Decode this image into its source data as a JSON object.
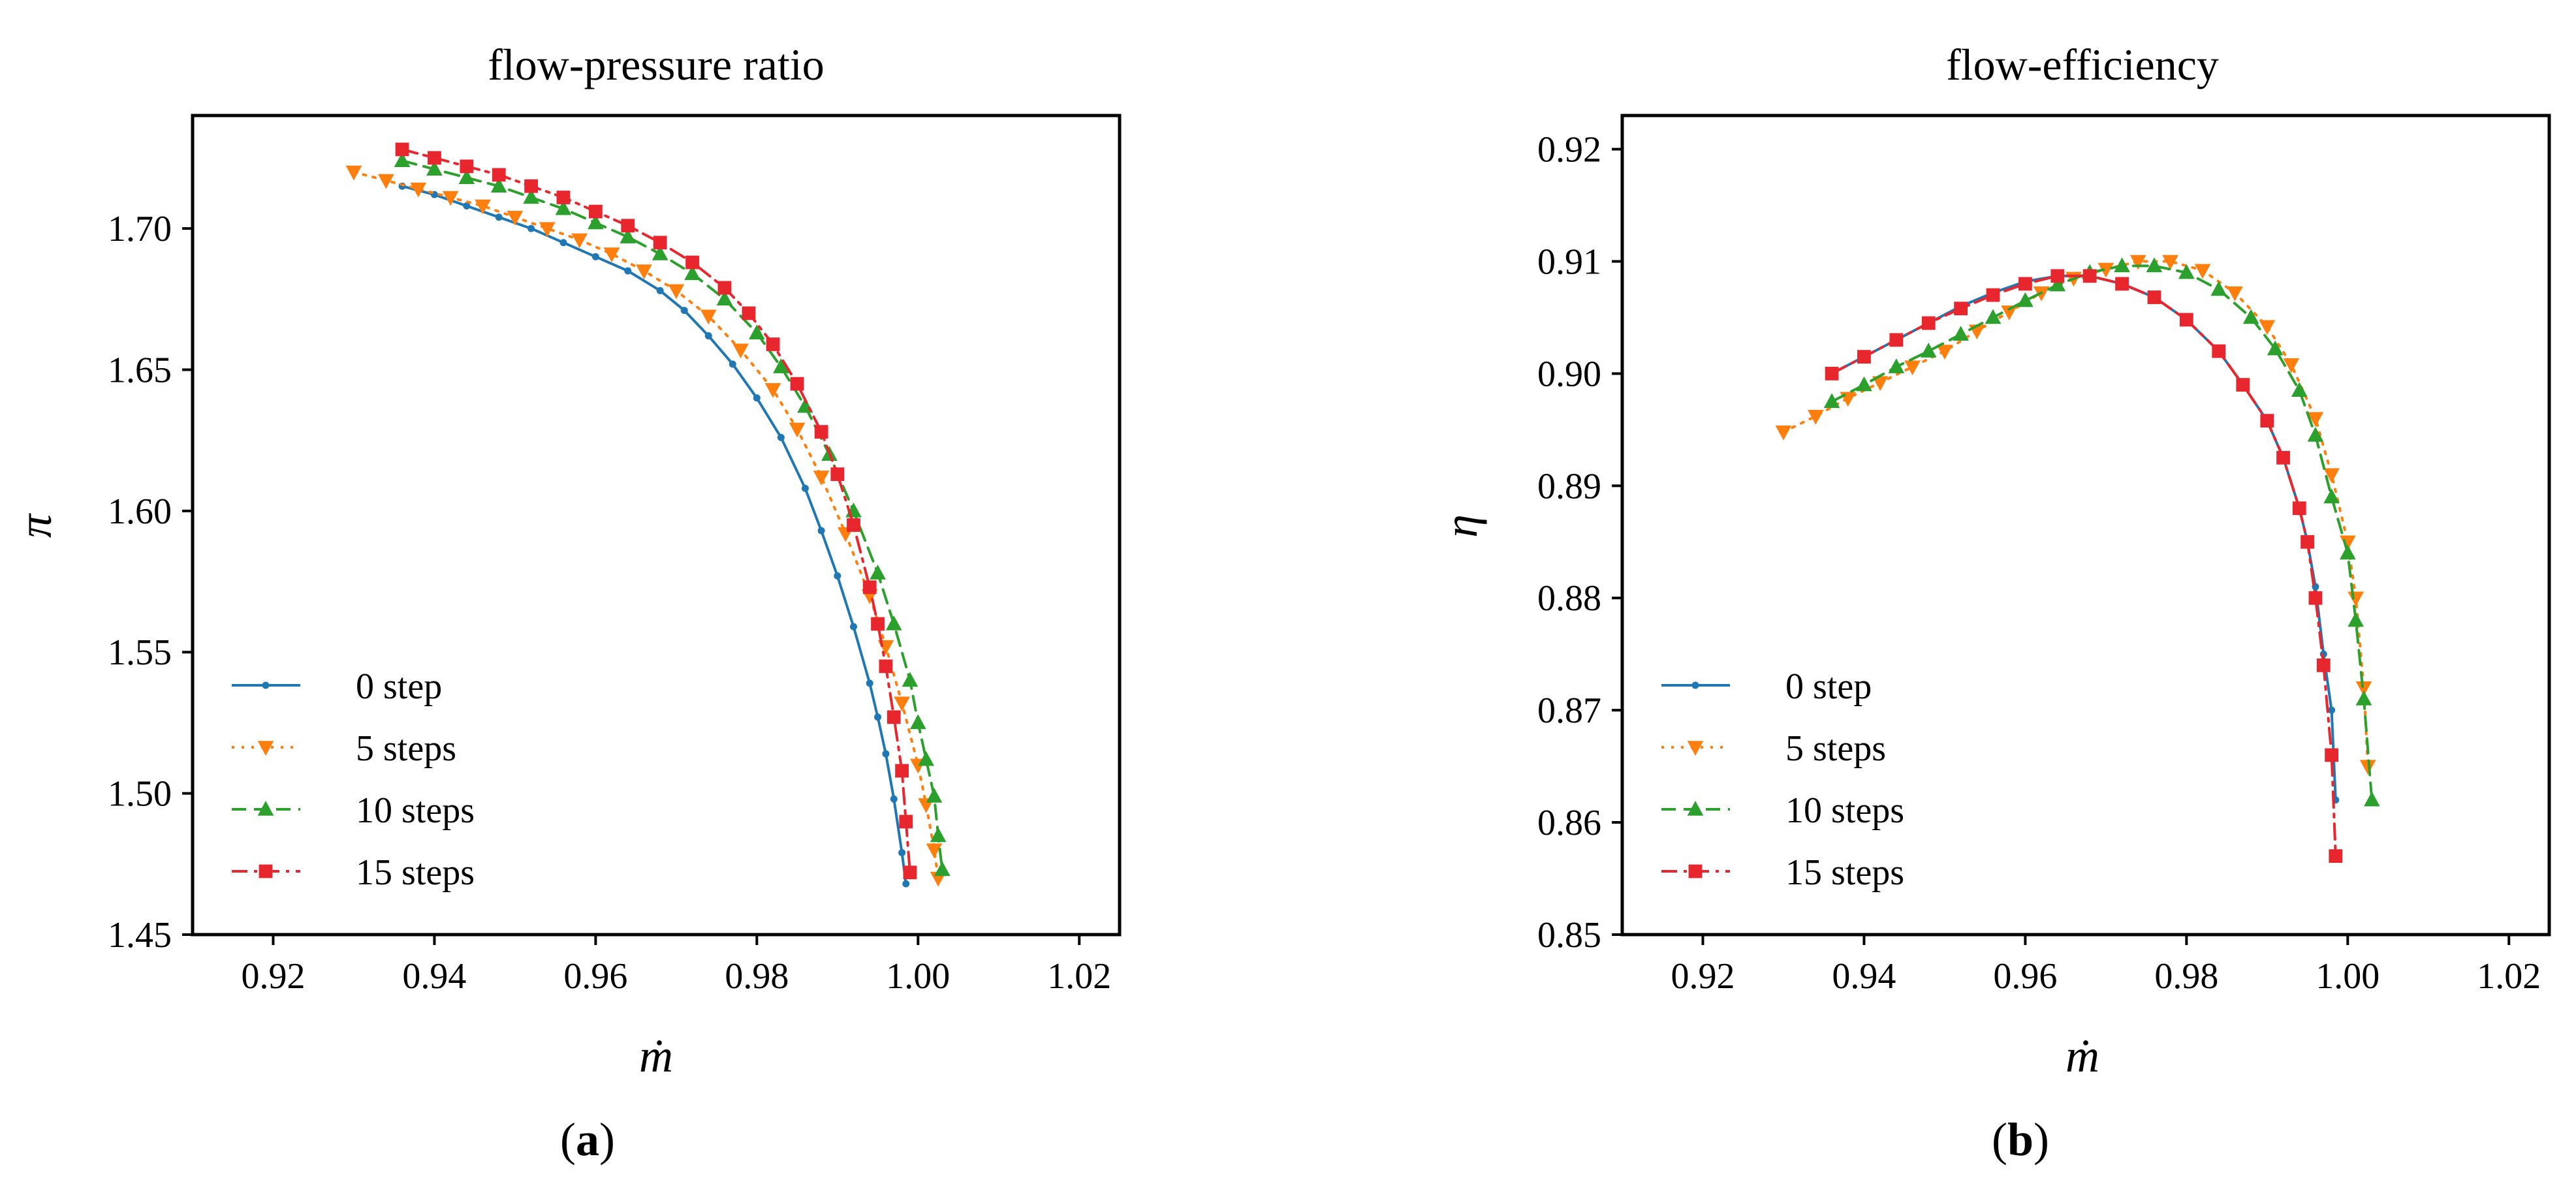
{
  "figure": {
    "panel_labels": [
      {
        "open": "(",
        "letter": "a",
        "close": ")"
      },
      {
        "open": "(",
        "letter": "b",
        "close": ")"
      }
    ]
  },
  "chart_data": [
    {
      "type": "line",
      "title": "flow-pressure ratio",
      "xlabel": "ṁ",
      "ylabel": "π",
      "xlim": [
        0.91,
        1.025
      ],
      "ylim": [
        1.45,
        1.74
      ],
      "xticks": [
        0.92,
        0.94,
        0.96,
        0.98,
        1.0,
        1.02
      ],
      "xtick_labels": [
        "0.92",
        "0.94",
        "0.96",
        "0.98",
        "1.00",
        "1.02"
      ],
      "yticks": [
        1.45,
        1.5,
        1.55,
        1.6,
        1.65,
        1.7
      ],
      "ytick_labels": [
        "1.45",
        "1.50",
        "1.55",
        "1.60",
        "1.65",
        "1.70"
      ],
      "grid": false,
      "legend_position": "lower-left",
      "series": [
        {
          "name": "0 step",
          "color": "#1f77b4",
          "linestyle": "solid",
          "marker": "dot",
          "x": [
            0.936,
            0.94,
            0.944,
            0.948,
            0.952,
            0.956,
            0.96,
            0.964,
            0.968,
            0.971,
            0.974,
            0.977,
            0.98,
            0.983,
            0.986,
            0.988,
            0.99,
            0.992,
            0.994,
            0.995,
            0.996,
            0.997,
            0.998,
            0.9985
          ],
          "y": [
            1.715,
            1.712,
            1.708,
            1.704,
            1.7,
            1.695,
            1.69,
            1.685,
            1.678,
            1.671,
            1.662,
            1.652,
            1.64,
            1.626,
            1.608,
            1.593,
            1.577,
            1.559,
            1.539,
            1.527,
            1.514,
            1.498,
            1.479,
            1.468
          ]
        },
        {
          "name": "5 steps",
          "color": "#ff7f0e",
          "linestyle": "dotted",
          "marker": "triangle-down",
          "x": [
            0.93,
            0.934,
            0.938,
            0.942,
            0.946,
            0.95,
            0.954,
            0.958,
            0.962,
            0.966,
            0.97,
            0.974,
            0.978,
            0.982,
            0.985,
            0.988,
            0.991,
            0.994,
            0.996,
            0.998,
            1.0,
            1.001,
            1.002,
            1.0025
          ],
          "y": [
            1.72,
            1.717,
            1.714,
            1.711,
            1.708,
            1.704,
            1.7,
            1.696,
            1.691,
            1.685,
            1.678,
            1.669,
            1.657,
            1.643,
            1.629,
            1.612,
            1.592,
            1.57,
            1.552,
            1.532,
            1.51,
            1.496,
            1.48,
            1.47
          ]
        },
        {
          "name": "10 steps",
          "color": "#2ca02c",
          "linestyle": "dashed",
          "marker": "triangle-up",
          "x": [
            0.936,
            0.94,
            0.944,
            0.948,
            0.952,
            0.956,
            0.96,
            0.964,
            0.968,
            0.972,
            0.976,
            0.98,
            0.983,
            0.986,
            0.989,
            0.992,
            0.995,
            0.997,
            0.999,
            1.0,
            1.001,
            1.002,
            1.0025,
            1.003
          ],
          "y": [
            1.724,
            1.721,
            1.718,
            1.715,
            1.711,
            1.707,
            1.702,
            1.697,
            1.691,
            1.684,
            1.675,
            1.663,
            1.651,
            1.637,
            1.62,
            1.6,
            1.578,
            1.56,
            1.54,
            1.525,
            1.512,
            1.499,
            1.485,
            1.473
          ]
        },
        {
          "name": "15 steps",
          "color": "#e8262d",
          "linestyle": "dashdot",
          "marker": "square",
          "x": [
            0.936,
            0.94,
            0.944,
            0.948,
            0.952,
            0.956,
            0.96,
            0.964,
            0.968,
            0.972,
            0.976,
            0.979,
            0.982,
            0.985,
            0.988,
            0.99,
            0.992,
            0.994,
            0.995,
            0.996,
            0.997,
            0.998,
            0.9985,
            0.999
          ],
          "y": [
            1.728,
            1.725,
            1.722,
            1.719,
            1.715,
            1.711,
            1.706,
            1.701,
            1.695,
            1.688,
            1.679,
            1.67,
            1.659,
            1.645,
            1.628,
            1.613,
            1.595,
            1.573,
            1.56,
            1.545,
            1.527,
            1.508,
            1.49,
            1.472
          ]
        }
      ]
    },
    {
      "type": "line",
      "title": "flow-efficiency",
      "xlabel": "ṁ",
      "ylabel": "η",
      "xlim": [
        0.91,
        1.025
      ],
      "ylim": [
        0.85,
        0.923
      ],
      "xticks": [
        0.92,
        0.94,
        0.96,
        0.98,
        1.0,
        1.02
      ],
      "xtick_labels": [
        "0.92",
        "0.94",
        "0.96",
        "0.98",
        "1.00",
        "1.02"
      ],
      "yticks": [
        0.85,
        0.86,
        0.87,
        0.88,
        0.89,
        0.9,
        0.91,
        0.92
      ],
      "ytick_labels": [
        "0.85",
        "0.86",
        "0.87",
        "0.88",
        "0.89",
        "0.90",
        "0.91",
        "0.92"
      ],
      "grid": false,
      "legend_position": "lower-left",
      "series": [
        {
          "name": "0 step",
          "color": "#1f77b4",
          "linestyle": "solid",
          "marker": "dot",
          "x": [
            0.936,
            0.94,
            0.944,
            0.948,
            0.952,
            0.956,
            0.96,
            0.964,
            0.968,
            0.972,
            0.976,
            0.98,
            0.984,
            0.987,
            0.99,
            0.992,
            0.994,
            0.995,
            0.996,
            0.997,
            0.998,
            0.9985
          ],
          "y": [
            0.9,
            0.9015,
            0.903,
            0.9045,
            0.906,
            0.9072,
            0.9082,
            0.9087,
            0.9087,
            0.908,
            0.9068,
            0.9048,
            0.902,
            0.899,
            0.8958,
            0.8925,
            0.888,
            0.885,
            0.881,
            0.875,
            0.87,
            0.862
          ]
        },
        {
          "name": "5 steps",
          "color": "#ff7f0e",
          "linestyle": "dotted",
          "marker": "triangle-down",
          "x": [
            0.93,
            0.934,
            0.938,
            0.942,
            0.946,
            0.95,
            0.954,
            0.958,
            0.962,
            0.966,
            0.97,
            0.974,
            0.978,
            0.982,
            0.986,
            0.99,
            0.993,
            0.996,
            0.998,
            1.0,
            1.001,
            1.002,
            1.0025
          ],
          "y": [
            0.8948,
            0.8962,
            0.8978,
            0.8992,
            0.9006,
            0.902,
            0.9038,
            0.9055,
            0.9072,
            0.9085,
            0.9093,
            0.91,
            0.91,
            0.9092,
            0.9072,
            0.9042,
            0.9008,
            0.896,
            0.891,
            0.885,
            0.88,
            0.872,
            0.865
          ]
        },
        {
          "name": "10 steps",
          "color": "#2ca02c",
          "linestyle": "dashed",
          "marker": "triangle-up",
          "x": [
            0.936,
            0.94,
            0.944,
            0.948,
            0.952,
            0.956,
            0.96,
            0.964,
            0.968,
            0.972,
            0.976,
            0.98,
            0.984,
            0.988,
            0.991,
            0.994,
            0.996,
            0.998,
            1.0,
            1.001,
            1.002,
            1.003
          ],
          "y": [
            0.8975,
            0.899,
            0.9006,
            0.902,
            0.9035,
            0.905,
            0.9065,
            0.9079,
            0.909,
            0.9096,
            0.9096,
            0.909,
            0.9075,
            0.905,
            0.9022,
            0.8985,
            0.8945,
            0.889,
            0.884,
            0.878,
            0.871,
            0.862
          ]
        },
        {
          "name": "15 steps",
          "color": "#e8262d",
          "linestyle": "dashdot",
          "marker": "square",
          "x": [
            0.936,
            0.94,
            0.944,
            0.948,
            0.952,
            0.956,
            0.96,
            0.964,
            0.968,
            0.972,
            0.976,
            0.98,
            0.984,
            0.987,
            0.99,
            0.992,
            0.994,
            0.995,
            0.996,
            0.997,
            0.998,
            0.9985
          ],
          "y": [
            0.9,
            0.9015,
            0.903,
            0.9045,
            0.9058,
            0.907,
            0.908,
            0.9087,
            0.9087,
            0.908,
            0.9068,
            0.9048,
            0.902,
            0.899,
            0.8958,
            0.8925,
            0.888,
            0.885,
            0.88,
            0.874,
            0.866,
            0.857
          ]
        }
      ]
    }
  ]
}
